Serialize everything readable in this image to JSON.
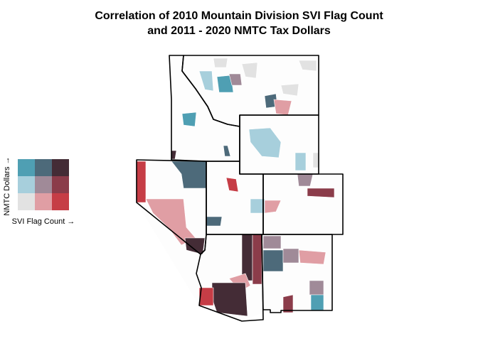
{
  "title": {
    "line1": "Correlation of 2010 Mountain Division SVI Flag Count",
    "line2": "and 2011 - 2020 NMTC Tax Dollars"
  },
  "legend": {
    "y_label": "NMTC Dollars →",
    "x_label": "SVI Flag Count →"
  }
}
